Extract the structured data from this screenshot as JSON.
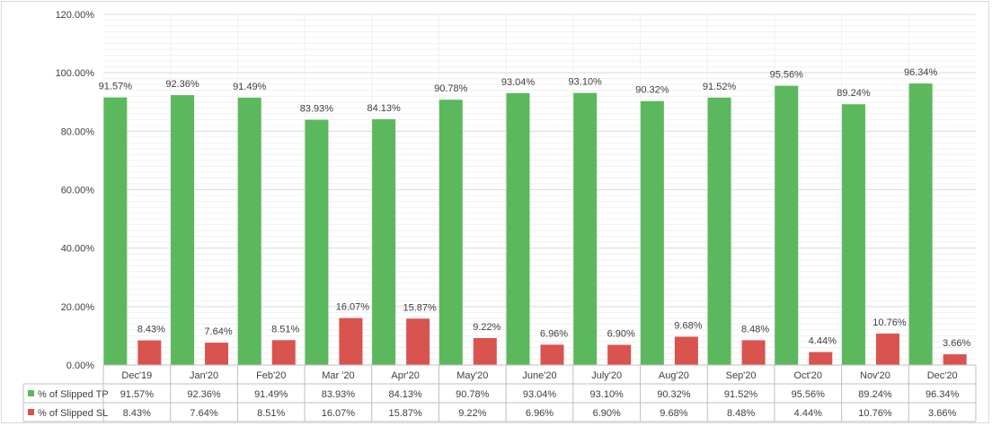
{
  "chart_data": {
    "type": "bar",
    "categories": [
      "Dec'19",
      "Jan'20",
      "Feb'20",
      "Mar '20",
      "Apr'20",
      "May'20",
      "June'20",
      "July'20",
      "Aug'20",
      "Sep'20",
      "Oct'20",
      "Nov'20",
      "Dec'20"
    ],
    "series": [
      {
        "name": "% of Slipped TP",
        "color": "#5cb85c",
        "values": [
          91.57,
          92.36,
          91.49,
          83.93,
          84.13,
          90.78,
          93.04,
          93.1,
          90.32,
          91.52,
          95.56,
          89.24,
          96.34
        ],
        "labels": [
          "91.57%",
          "92.36%",
          "91.49%",
          "83.93%",
          "84.13%",
          "90.78%",
          "93.04%",
          "93.10%",
          "90.32%",
          "91.52%",
          "95.56%",
          "89.24%",
          "96.34%"
        ]
      },
      {
        "name": "% of Slipped SL",
        "color": "#d9534f",
        "values": [
          8.43,
          7.64,
          8.51,
          16.07,
          15.87,
          9.22,
          6.96,
          6.9,
          9.68,
          8.48,
          4.44,
          10.76,
          3.66
        ],
        "labels": [
          "8.43%",
          "7.64%",
          "8.51%",
          "16.07%",
          "15.87%",
          "9.22%",
          "6.96%",
          "6.90%",
          "9.68%",
          "8.48%",
          "4.44%",
          "10.76%",
          "3.66%"
        ]
      }
    ],
    "ylim": [
      0,
      120
    ],
    "yticks": [
      "0.00%",
      "20.00%",
      "40.00%",
      "60.00%",
      "80.00%",
      "100.00%",
      "120.00%"
    ],
    "title": "",
    "xlabel": "",
    "ylabel": "",
    "grid": true,
    "legend": "data-table-below"
  }
}
